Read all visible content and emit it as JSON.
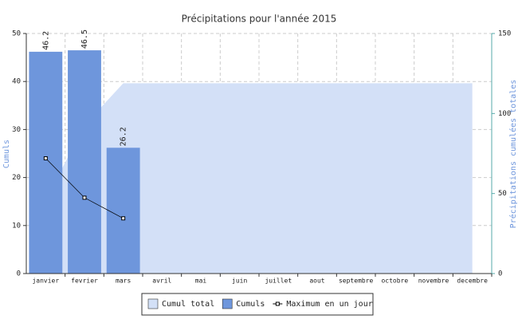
{
  "chart_data": {
    "type": "bar",
    "title": "Précipitations pour l'année 2015",
    "ylabel": "Cumuls",
    "y2label": "Précipitations cumulées totales",
    "categories": [
      "janvier",
      "fevrier",
      "mars",
      "avril",
      "mai",
      "juin",
      "juillet",
      "aout",
      "septembre",
      "octobre",
      "novembre",
      "decembre"
    ],
    "series": [
      {
        "name": "Cumul total",
        "type": "area",
        "axis": "y2",
        "color": "#d3e0f7",
        "values": [
          46,
          92.7,
          118.9,
          118.9,
          118.9,
          118.9,
          118.9,
          118.9,
          118.9,
          118.9,
          118.9,
          118.9
        ]
      },
      {
        "name": "Cumuls",
        "type": "bar",
        "color": "#6e96dc",
        "values": [
          46.2,
          46.5,
          26.2,
          null,
          null,
          null,
          null,
          null,
          null,
          null,
          null,
          null
        ]
      },
      {
        "name": "Maximum en un jour",
        "type": "line",
        "color": "#000000",
        "values": [
          24,
          15.8,
          11.5,
          null,
          null,
          null,
          null,
          null,
          null,
          null,
          null,
          null
        ]
      }
    ],
    "ylim": [
      0,
      50
    ],
    "yticks": [
      0,
      10,
      20,
      30,
      40,
      50
    ],
    "y2lim": [
      0,
      150
    ],
    "y2ticks": [
      0,
      50,
      100,
      150
    ],
    "grid": true,
    "legend": "bottom"
  }
}
